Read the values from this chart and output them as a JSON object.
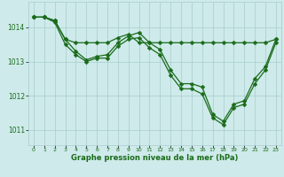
{
  "line_a": [
    1014.3,
    1014.3,
    1014.2,
    1013.65,
    1013.55,
    1013.55,
    1013.55,
    1013.55,
    1013.7,
    1013.8,
    1013.55,
    1013.55,
    1013.55,
    1013.55,
    1013.55,
    1013.55,
    1013.55,
    1013.55,
    1013.55,
    1013.55,
    1013.55,
    1013.55,
    1013.55,
    1013.65
  ],
  "line_b": [
    1014.3,
    1014.3,
    1014.2,
    1013.65,
    1013.3,
    1013.05,
    1013.15,
    1013.2,
    1013.55,
    1013.75,
    1013.85,
    1013.55,
    1013.35,
    1012.75,
    1012.35,
    1012.35,
    1012.25,
    1011.45,
    1011.25,
    1011.75,
    1011.85,
    1012.5,
    1012.85,
    1013.65
  ],
  "line_c": [
    1014.3,
    1014.3,
    1014.15,
    1013.5,
    1013.2,
    1013.0,
    1013.1,
    1013.1,
    1013.45,
    1013.65,
    1013.7,
    1013.4,
    1013.2,
    1012.6,
    1012.2,
    1012.2,
    1012.05,
    1011.35,
    1011.15,
    1011.65,
    1011.75,
    1012.35,
    1012.75,
    1013.55
  ],
  "line_color": "#1a6b1a",
  "bg_color": "#ceeaea",
  "grid_color": "#a8cccc",
  "xlabel": "Graphe pression niveau de la mer (hPa)",
  "yticks": [
    1011,
    1012,
    1013,
    1014
  ],
  "xticks": [
    0,
    1,
    2,
    3,
    4,
    5,
    6,
    7,
    8,
    9,
    10,
    11,
    12,
    13,
    14,
    15,
    16,
    17,
    18,
    19,
    20,
    21,
    22,
    23
  ],
  "ylim": [
    1010.55,
    1014.75
  ],
  "xlim": [
    -0.5,
    23.5
  ]
}
